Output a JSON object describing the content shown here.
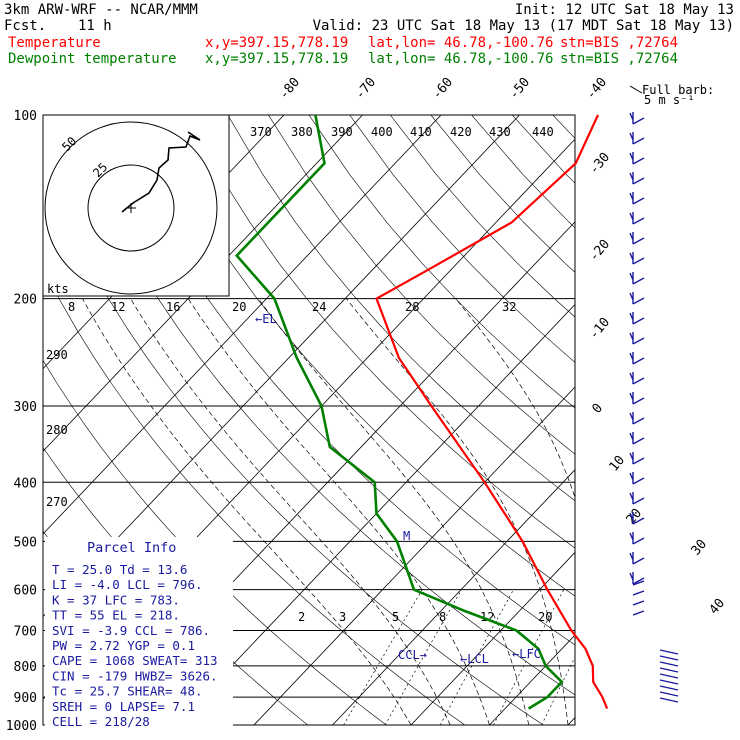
{
  "header": {
    "model": "3km ARW-WRF -- NCAR/MMM",
    "init": "Init: 12 UTC Sat 18 May 13",
    "fcst_label": "Fcst.",
    "fcst_value": "11 h",
    "valid": "Valid: 23 UTC Sat 18 May 13 (17 MDT Sat 18 May 13)",
    "temp_label": "Temperature",
    "dew_label": "Dewpoint temperature",
    "xy": "x,y=397.15,778.19",
    "latlon": "lat,lon= 46.78,-100.76",
    "stn": "stn=BIS ,72764"
  },
  "barb_legend": {
    "line1": "Full barb:",
    "line2": "5 m s⁻¹"
  },
  "colors": {
    "temperature": "#ff0000",
    "dewpoint": "#008000",
    "info": "#1a1aa0",
    "grid": "#000000"
  },
  "parcel_info": {
    "title": "Parcel Info",
    "rows": [
      "T  =   25.0  Td =  13.6",
      "LI =   -4.0  LCL =  796.",
      "K  =     37  LFC =  783.",
      "TT =     55  EL  =  218.",
      "SVI =  -3.9  CCL =  786.",
      "PW =   2.72  YGP =   0.1",
      "CAPE =  1068  SWEAT=  313",
      "CIN =  -179  HWBZ= 3626.",
      "Tc =   25.7  SHEAR=  48.",
      "SREH =    0  LAPSE=   7.1",
      "CELL = 218/28"
    ]
  },
  "hodograph": {
    "units": "kts",
    "ring_labels": [
      "25",
      "50"
    ],
    "speed_labels": [
      "8",
      "12",
      "16",
      "20",
      "24",
      "28",
      "32"
    ]
  },
  "markers": {
    "el": "←EL",
    "lcl": "←LCL",
    "lfc": "←LFC",
    "ccl": "CCL→",
    "m": "M"
  },
  "chart_data": {
    "type": "line",
    "title": "",
    "ylabel": "",
    "pressure_levels": [
      100,
      200,
      300,
      400,
      500,
      600,
      700,
      800,
      900,
      1000
    ],
    "isotherm_labels": [
      -80,
      -70,
      -60,
      -50,
      -40,
      -30,
      -20,
      -10,
      0,
      10,
      20,
      30,
      40
    ],
    "theta_labels": [
      370,
      380,
      390,
      400,
      410,
      420,
      430,
      440
    ],
    "theta_left_labels": [
      290,
      280,
      270
    ],
    "mixing_ratio_labels": [
      2,
      3,
      5,
      8,
      12,
      20
    ],
    "series": [
      {
        "name": "Temperature",
        "points": [
          [
            940,
            23
          ],
          [
            900,
            21
          ],
          [
            850,
            18
          ],
          [
            800,
            16
          ],
          [
            750,
            13
          ],
          [
            700,
            9
          ],
          [
            600,
            1
          ],
          [
            500,
            -8
          ],
          [
            400,
            -20
          ],
          [
            300,
            -36
          ],
          [
            250,
            -46
          ],
          [
            200,
            -56
          ],
          [
            180,
            -53
          ],
          [
            150,
            -48
          ],
          [
            120,
            -47
          ],
          [
            100,
            -50
          ]
        ]
      },
      {
        "name": "Dewpoint temperature",
        "points": [
          [
            940,
            13
          ],
          [
            900,
            14
          ],
          [
            850,
            14
          ],
          [
            800,
            10
          ],
          [
            750,
            7
          ],
          [
            700,
            2
          ],
          [
            650,
            -7
          ],
          [
            600,
            -16
          ],
          [
            500,
            -24
          ],
          [
            450,
            -30
          ],
          [
            400,
            -34
          ],
          [
            350,
            -44
          ],
          [
            300,
            -50
          ],
          [
            250,
            -59
          ],
          [
            200,
            -69
          ],
          [
            170,
            -79
          ],
          [
            150,
            -79
          ],
          [
            120,
            -79
          ],
          [
            100,
            -86
          ]
        ]
      }
    ]
  }
}
